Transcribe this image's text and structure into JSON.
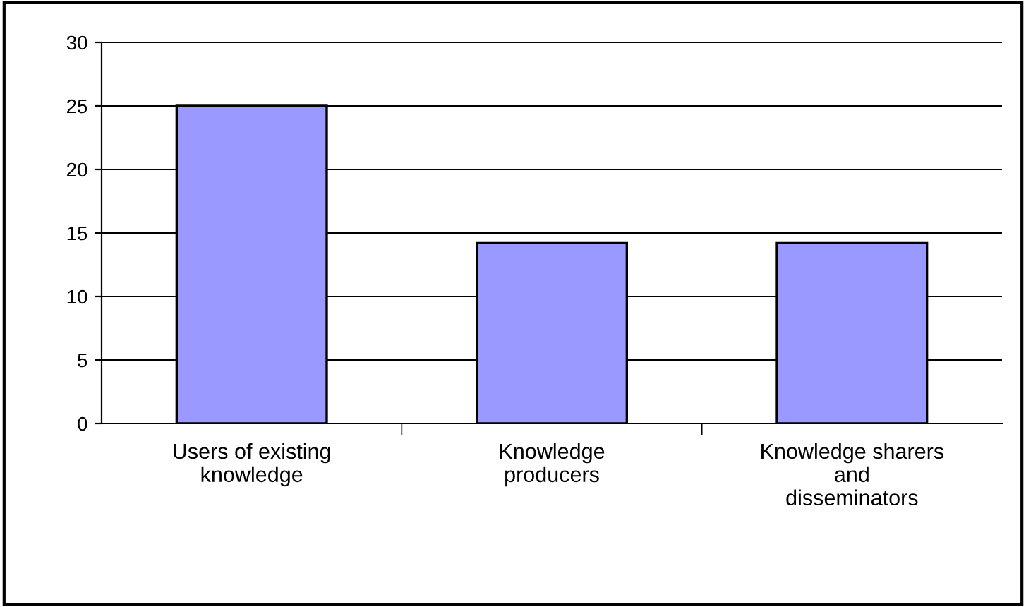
{
  "chart_data": {
    "type": "bar",
    "categories": [
      "Users of existing\nknowledge",
      "Knowledge\nproducers",
      "Knowledge sharers\nand\ndisseminators"
    ],
    "values": [
      25,
      14.2,
      14.2
    ],
    "color": "#9999ff",
    "ylim": [
      0,
      30
    ],
    "yticks": [
      0,
      5,
      10,
      15,
      20,
      25,
      30
    ],
    "grid": "y",
    "legend": false
  }
}
